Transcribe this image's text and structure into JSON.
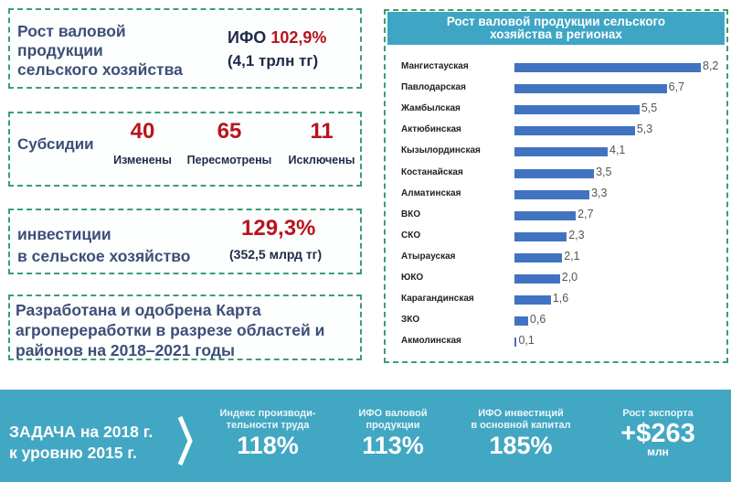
{
  "gross_output": {
    "label_lines": [
      "Рост валовой",
      "продукции",
      "сельского хозяйства"
    ],
    "ifo_prefix": "ИФО",
    "ifo_value": "102,9%",
    "amount": "(4,1 трлн тг)"
  },
  "subsidies": {
    "label": "Субсидии",
    "items": [
      {
        "number": "40",
        "caption": "Изменены"
      },
      {
        "number": "65",
        "caption": "Пересмотрены"
      },
      {
        "number": "11",
        "caption": "Исключены"
      }
    ]
  },
  "investments": {
    "label_lines": [
      "инвестиции",
      "в сельское хозяйство"
    ],
    "percent": "129,3%",
    "amount": "(352,5 млрд тг)"
  },
  "map_note": {
    "lines": [
      "Разработана и одобрена Карта",
      "агропереработки в разрезе областей и",
      "районов на 2018–2021 годы"
    ]
  },
  "chart_data": {
    "type": "bar",
    "orientation": "horizontal",
    "title": "Рост валовой продукции сельского хозяйства в регионах",
    "title_lines": [
      "Рост валовой продукции сельского",
      "хозяйства в регионах"
    ],
    "categories": [
      "Мангистауская",
      "Павлодарская",
      "Жамбылская",
      "Актюбинская",
      "Кызылординская",
      "Костанайская",
      "Алматинская",
      "ВКО",
      "СКО",
      "Атырауская",
      "ЮКО",
      "Карагандинская",
      "ЗКО",
      "Акмолинская"
    ],
    "values": [
      8.2,
      6.7,
      5.5,
      5.3,
      4.1,
      3.5,
      3.3,
      2.7,
      2.3,
      2.1,
      2.0,
      1.6,
      0.6,
      0.1
    ],
    "value_labels": [
      "8,2",
      "6,7",
      "5,5",
      "5,3",
      "4,1",
      "3,5",
      "3,3",
      "2,7",
      "2,3",
      "2,1",
      "2,0",
      "1,6",
      "0,6",
      "0,1"
    ],
    "xlabel": "",
    "ylabel": "",
    "xlim": [
      0,
      8.2
    ],
    "grid": false,
    "legend": null,
    "bar_color": "#4273c0"
  },
  "banner": {
    "task_lines": [
      "ЗАДАЧА на 2018 г.",
      "к уровню 2015 г."
    ],
    "kpis": [
      {
        "caption_lines": [
          "Индекс производи-",
          "тельности труда"
        ],
        "value": "118%"
      },
      {
        "caption_lines": [
          "ИФО валовой",
          "продукции"
        ],
        "value": "113%"
      },
      {
        "caption_lines": [
          "ИФО инвестиций",
          "в основной капитал"
        ],
        "value": "185%"
      },
      {
        "caption_lines": [
          "Рост экспорта"
        ],
        "value": "+$263",
        "unit": "млн"
      }
    ],
    "background_color": "#42a7c3"
  },
  "colors": {
    "border": "#3a9e77",
    "label_text": "#3c4f78",
    "highlight_red": "#b8141f",
    "chart_header": "#3ea5c4"
  }
}
